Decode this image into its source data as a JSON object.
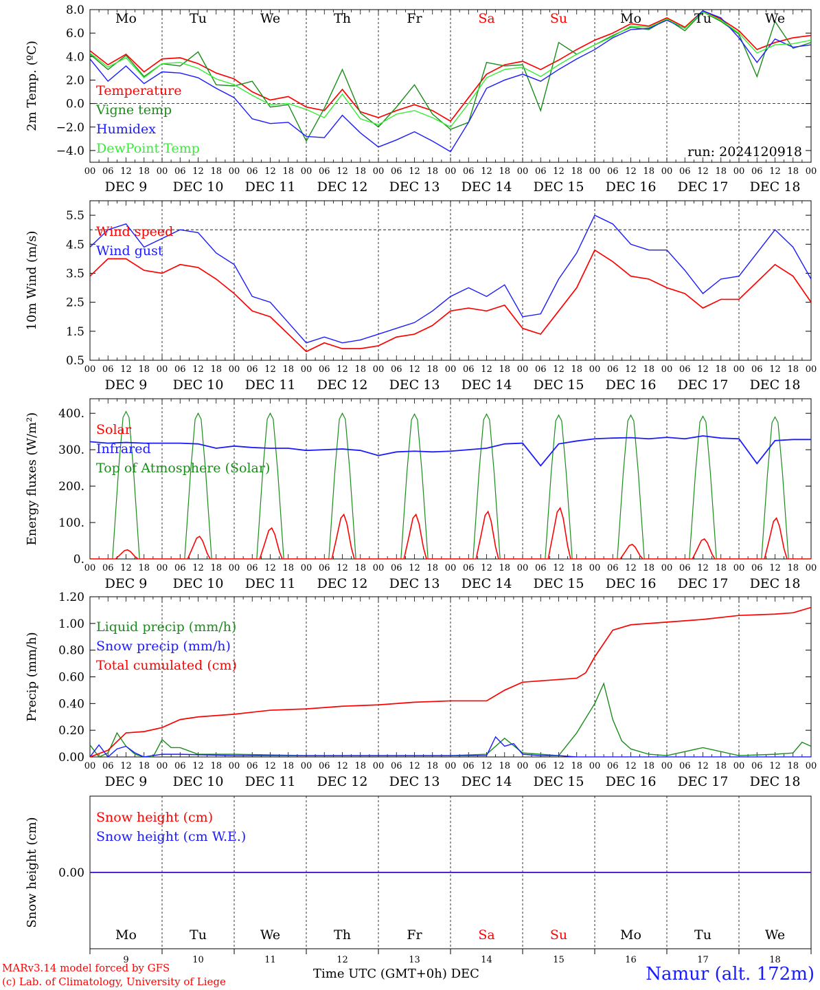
{
  "run_label": "run: 2024120918",
  "footer": {
    "model": "MARv3.14 model forced by GFS",
    "copyright": "(c) Lab. of Climatology, University of Liege",
    "axis_title": "Time UTC (GMT+0h)",
    "month": "DEC",
    "station": "Namur (alt. 172m)"
  },
  "days": [
    {
      "weekday": "Mo",
      "date": "DEC  9",
      "num": "9",
      "weekend": false
    },
    {
      "weekday": "Tu",
      "date": "DEC 10",
      "num": "10",
      "weekend": false
    },
    {
      "weekday": "We",
      "date": "DEC 11",
      "num": "11",
      "weekend": false
    },
    {
      "weekday": "Th",
      "date": "DEC 12",
      "num": "12",
      "weekend": false
    },
    {
      "weekday": "Fr",
      "date": "DEC 13",
      "num": "13",
      "weekend": false
    },
    {
      "weekday": "Sa",
      "date": "DEC 14",
      "num": "14",
      "weekend": true
    },
    {
      "weekday": "Su",
      "date": "DEC 15",
      "num": "15",
      "weekend": true
    },
    {
      "weekday": "Mo",
      "date": "DEC 16",
      "num": "16",
      "weekend": false
    },
    {
      "weekday": "Tu",
      "date": "DEC 17",
      "num": "17",
      "weekend": false
    },
    {
      "weekday": "We",
      "date": "DEC 18",
      "num": "18",
      "weekend": false
    }
  ],
  "hour_ticks": [
    "00",
    "06",
    "12",
    "18"
  ],
  "colors": {
    "red": "#ff0000",
    "green": "#1a8c1a",
    "blue": "#1a1aff",
    "lightgreen": "#33ee33",
    "weekend": "#ff0000"
  },
  "chart_data": [
    {
      "type": "line",
      "ylabel": "2m Temp. (ºC)",
      "ylim": [
        -5,
        8
      ],
      "yticks": [
        -4,
        -2,
        0,
        2,
        4,
        6,
        8
      ],
      "ytick_labels": [
        "−4.0",
        "−2.0",
        "0.0",
        "2.0",
        "4.0",
        "6.0",
        "8.0"
      ],
      "ref_line": 0,
      "x_unit": "hours since DEC 9 00 UTC",
      "series": [
        {
          "name": "Temperature",
          "color": "red",
          "x": [
            0,
            6,
            12,
            18,
            24,
            30,
            36,
            42,
            48,
            54,
            60,
            66,
            72,
            78,
            84,
            90,
            96,
            102,
            108,
            114,
            120,
            126,
            132,
            138,
            144,
            150,
            156,
            162,
            168,
            174,
            180,
            186,
            192,
            198,
            204,
            210,
            216,
            222,
            228,
            234,
            240
          ],
          "values": [
            4.5,
            3.3,
            4.2,
            2.7,
            3.8,
            3.9,
            3.4,
            2.6,
            2.1,
            1.0,
            0.3,
            0.6,
            -0.3,
            -0.6,
            1.2,
            -0.7,
            -1.2,
            -0.6,
            -0.1,
            -0.6,
            -1.5,
            0.5,
            2.5,
            3.3,
            3.6,
            2.9,
            3.7,
            4.6,
            5.4,
            6.0,
            6.8,
            6.6,
            7.3,
            6.5,
            7.9,
            7.2,
            6.2,
            4.6,
            5.2,
            5.6,
            5.8
          ]
        },
        {
          "name": "Vigne temp",
          "color": "green",
          "x": [
            0,
            6,
            12,
            18,
            24,
            30,
            36,
            42,
            48,
            54,
            60,
            66,
            72,
            78,
            84,
            90,
            96,
            102,
            108,
            114,
            120,
            126,
            132,
            138,
            144,
            150,
            156,
            162,
            168,
            174,
            180,
            186,
            192,
            198,
            204,
            210,
            216,
            222,
            228,
            234,
            240
          ],
          "values": [
            4.2,
            2.9,
            4.1,
            2.3,
            3.4,
            3.2,
            4.4,
            1.6,
            1.5,
            1.9,
            -0.3,
            -0.1,
            -3.2,
            -0.4,
            2.9,
            -0.8,
            -2.0,
            -0.3,
            1.6,
            -0.9,
            -2.2,
            -1.6,
            3.5,
            3.2,
            3.3,
            -0.6,
            5.2,
            4.2,
            5.0,
            5.8,
            6.5,
            6.3,
            7.2,
            6.2,
            7.8,
            7.0,
            5.9,
            2.3,
            7.0,
            4.7,
            5.2
          ]
        },
        {
          "name": "Humidex",
          "color": "blue",
          "x": [
            0,
            6,
            12,
            18,
            24,
            30,
            36,
            42,
            48,
            54,
            60,
            66,
            72,
            78,
            84,
            90,
            96,
            102,
            108,
            114,
            120,
            126,
            132,
            138,
            144,
            150,
            156,
            162,
            168,
            174,
            180,
            186,
            192,
            198,
            204,
            210,
            216,
            222,
            228,
            234,
            240
          ],
          "values": [
            3.8,
            1.9,
            3.2,
            1.7,
            2.7,
            2.6,
            2.2,
            1.3,
            0.5,
            -1.3,
            -1.7,
            -1.6,
            -2.8,
            -2.9,
            -1.0,
            -2.5,
            -3.7,
            -3.1,
            -2.4,
            -3.2,
            -4.1,
            -1.6,
            1.3,
            2.0,
            2.5,
            1.9,
            2.9,
            3.8,
            4.6,
            5.6,
            6.3,
            6.4,
            7.1,
            6.4,
            7.9,
            7.3,
            5.6,
            3.5,
            5.5,
            4.8,
            5.0
          ]
        },
        {
          "name": "DewPoint Temp",
          "color": "lightgreen",
          "x": [
            0,
            6,
            12,
            18,
            24,
            30,
            36,
            42,
            48,
            54,
            60,
            66,
            72,
            78,
            84,
            90,
            96,
            102,
            108,
            114,
            120,
            126,
            132,
            138,
            144,
            150,
            156,
            162,
            168,
            174,
            180,
            186,
            192,
            198,
            204,
            210,
            216,
            222,
            228,
            234,
            240
          ],
          "values": [
            4.3,
            3.1,
            3.9,
            2.2,
            3.4,
            3.5,
            3.0,
            2.1,
            1.6,
            0.7,
            -0.1,
            0.0,
            -0.5,
            -1.2,
            0.8,
            -1.3,
            -1.8,
            -0.9,
            -0.6,
            -1.2,
            -2.0,
            0.0,
            2.2,
            2.9,
            3.1,
            2.3,
            3.3,
            4.2,
            5.0,
            5.7,
            6.6,
            6.5,
            7.2,
            6.4,
            7.8,
            7.1,
            6.0,
            4.3,
            5.0,
            5.1,
            5.4
          ]
        }
      ]
    },
    {
      "type": "line",
      "ylabel": "10m Wind (m/s)",
      "ylim": [
        0.5,
        6.0
      ],
      "yticks": [
        0.5,
        1.5,
        2.5,
        3.5,
        4.5,
        5.5
      ],
      "ytick_labels": [
        "0.5",
        "1.5",
        "2.5",
        "3.5",
        "4.5",
        "5.5"
      ],
      "ref_line": 5,
      "x_unit": "hours since DEC 9 00 UTC",
      "series": [
        {
          "name": "Wind speed",
          "color": "red",
          "x": [
            0,
            6,
            12,
            18,
            24,
            30,
            36,
            42,
            48,
            54,
            60,
            66,
            72,
            78,
            84,
            90,
            96,
            102,
            108,
            114,
            120,
            126,
            132,
            138,
            144,
            150,
            156,
            162,
            168,
            174,
            180,
            186,
            192,
            198,
            204,
            210,
            216,
            222,
            228,
            234,
            240
          ],
          "values": [
            3.4,
            4.0,
            4.0,
            3.6,
            3.5,
            3.8,
            3.7,
            3.3,
            2.8,
            2.2,
            2.0,
            1.4,
            0.8,
            1.1,
            0.9,
            0.9,
            1.0,
            1.3,
            1.4,
            1.7,
            2.2,
            2.3,
            2.2,
            2.4,
            1.6,
            1.4,
            2.2,
            3.0,
            4.3,
            3.9,
            3.4,
            3.3,
            3.0,
            2.8,
            2.3,
            2.6,
            2.6,
            3.2,
            3.8,
            3.4,
            2.5
          ]
        },
        {
          "name": "Wind gust",
          "color": "blue",
          "x": [
            0,
            6,
            12,
            18,
            24,
            30,
            36,
            42,
            48,
            54,
            60,
            66,
            72,
            78,
            84,
            90,
            96,
            102,
            108,
            114,
            120,
            126,
            132,
            138,
            144,
            150,
            156,
            162,
            168,
            174,
            180,
            186,
            192,
            198,
            204,
            210,
            216,
            222,
            228,
            234,
            240
          ],
          "values": [
            4.4,
            5.0,
            5.2,
            4.4,
            4.7,
            5.0,
            4.9,
            4.2,
            3.8,
            2.7,
            2.5,
            1.8,
            1.1,
            1.3,
            1.1,
            1.2,
            1.4,
            1.6,
            1.8,
            2.2,
            2.7,
            3.0,
            2.7,
            3.1,
            2.0,
            2.1,
            3.3,
            4.2,
            5.5,
            5.2,
            4.5,
            4.3,
            4.3,
            3.6,
            2.8,
            3.3,
            3.4,
            4.2,
            5.0,
            4.4,
            3.3
          ]
        }
      ]
    },
    {
      "type": "line",
      "ylabel": "Energy fluxes (W/m²)",
      "ylim": [
        0,
        440
      ],
      "yticks": [
        0,
        100,
        200,
        300,
        400
      ],
      "ytick_labels": [
        "0.",
        "100.",
        "200.",
        "300.",
        "400."
      ],
      "x_unit": "hours since DEC 9 00 UTC",
      "solar_day_peaks": [
        25,
        62,
        85,
        122,
        122,
        130,
        140,
        40,
        55,
        112
      ],
      "toa_day_peaks": [
        405,
        400,
        400,
        400,
        398,
        398,
        395,
        395,
        392,
        390
      ],
      "series": [
        {
          "name": "Solar",
          "color": "red",
          "note": "daily bell, peak per day in solar_day_peaks"
        },
        {
          "name": "Infrared",
          "color": "blue",
          "x": [
            0,
            6,
            12,
            18,
            24,
            30,
            36,
            42,
            48,
            54,
            60,
            66,
            72,
            78,
            84,
            90,
            96,
            102,
            108,
            114,
            120,
            126,
            132,
            138,
            144,
            150,
            156,
            162,
            168,
            174,
            180,
            186,
            192,
            198,
            204,
            210,
            216,
            222,
            228,
            234,
            240
          ],
          "values": [
            322,
            318,
            320,
            318,
            318,
            318,
            316,
            304,
            310,
            306,
            304,
            304,
            298,
            300,
            302,
            298,
            284,
            294,
            296,
            294,
            296,
            300,
            304,
            316,
            318,
            256,
            316,
            324,
            330,
            332,
            333,
            330,
            334,
            330,
            338,
            332,
            330,
            262,
            325,
            328,
            328
          ]
        },
        {
          "name": "Top of Atmosphere (Solar)",
          "color": "green",
          "note": "daily plateau, peak per day in toa_day_peaks"
        }
      ]
    },
    {
      "type": "line",
      "ylabel": "Precip (mm/h)",
      "ylim": [
        0,
        1.2
      ],
      "yticks": [
        0,
        0.2,
        0.4,
        0.6,
        0.8,
        1.0,
        1.2
      ],
      "ytick_labels": [
        "0.00",
        "0.20",
        "0.40",
        "0.60",
        "0.80",
        "1.00",
        "1.20"
      ],
      "x_unit": "hours since DEC 9 00 UTC",
      "series": [
        {
          "name": "Liquid precip (mm/h)",
          "color": "green",
          "x": [
            0,
            3,
            6,
            9,
            12,
            15,
            18,
            21,
            24,
            27,
            30,
            36,
            48,
            72,
            96,
            120,
            132,
            138,
            144,
            150,
            156,
            162,
            168,
            171,
            174,
            177,
            180,
            186,
            192,
            204,
            216,
            228,
            234,
            237,
            240
          ],
          "values": [
            0.09,
            0.0,
            0.03,
            0.18,
            0.08,
            0.02,
            0.0,
            0.0,
            0.13,
            0.07,
            0.07,
            0.02,
            0.02,
            0.01,
            0.01,
            0.01,
            0.02,
            0.14,
            0.03,
            0.02,
            0.01,
            0.18,
            0.4,
            0.55,
            0.28,
            0.12,
            0.06,
            0.02,
            0.01,
            0.07,
            0.01,
            0.02,
            0.03,
            0.11,
            0.08
          ]
        },
        {
          "name": "Snow precip (mm/h)",
          "color": "blue",
          "x": [
            0,
            3,
            6,
            9,
            12,
            15,
            18,
            24,
            30,
            48,
            72,
            96,
            120,
            132,
            135,
            138,
            141,
            144,
            150,
            156,
            162,
            168,
            192,
            216,
            240
          ],
          "values": [
            0.0,
            0.09,
            0.0,
            0.06,
            0.08,
            0.03,
            0.0,
            0.02,
            0.02,
            0.01,
            0.01,
            0.01,
            0.01,
            0.01,
            0.15,
            0.08,
            0.1,
            0.02,
            0.01,
            0.01,
            0.0,
            0.0,
            0.0,
            0.0,
            0.0
          ]
        },
        {
          "name": "Total cumulated (cm)",
          "color": "red",
          "x": [
            0,
            6,
            12,
            18,
            24,
            30,
            36,
            48,
            60,
            72,
            84,
            96,
            108,
            120,
            132,
            138,
            144,
            150,
            162,
            165,
            168,
            174,
            180,
            192,
            204,
            216,
            228,
            234,
            240
          ],
          "values": [
            0.0,
            0.05,
            0.18,
            0.19,
            0.22,
            0.28,
            0.3,
            0.32,
            0.35,
            0.36,
            0.38,
            0.39,
            0.41,
            0.42,
            0.42,
            0.5,
            0.56,
            0.57,
            0.59,
            0.63,
            0.75,
            0.95,
            0.99,
            1.01,
            1.03,
            1.06,
            1.07,
            1.08,
            1.12
          ]
        }
      ]
    },
    {
      "type": "line",
      "ylabel": "Snow height (cm)",
      "ylim": [
        -1,
        1
      ],
      "yticks": [
        0
      ],
      "ytick_labels": [
        "0.00"
      ],
      "x_unit": "hours since DEC 9 00 UTC",
      "series": [
        {
          "name": "Snow height (cm)",
          "color": "red",
          "x": [
            0,
            240
          ],
          "values": [
            0,
            0
          ]
        },
        {
          "name": "Snow height (cm W.E.)",
          "color": "blue",
          "x": [
            0,
            240
          ],
          "values": [
            0,
            0
          ]
        }
      ]
    }
  ]
}
